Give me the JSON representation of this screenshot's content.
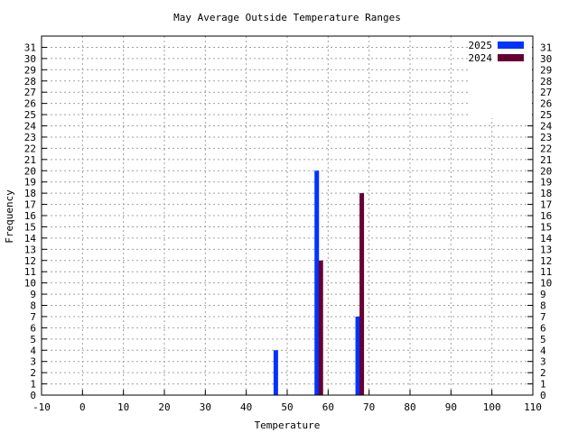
{
  "chart_data": {
    "type": "bar",
    "title": "May Average Outside Temperature Ranges",
    "xlabel": "Temperature",
    "ylabel": "Frequency",
    "xlim": [
      -10,
      110
    ],
    "ylim": [
      0,
      32
    ],
    "xticks": [
      -10,
      0,
      10,
      20,
      30,
      40,
      50,
      60,
      70,
      80,
      90,
      100,
      110
    ],
    "yticks": [
      0,
      1,
      2,
      3,
      4,
      5,
      6,
      7,
      8,
      9,
      10,
      11,
      12,
      13,
      14,
      15,
      16,
      17,
      18,
      19,
      20,
      21,
      22,
      23,
      24,
      25,
      26,
      27,
      28,
      29,
      30,
      31
    ],
    "grid": true,
    "legend_position": "top-right",
    "series": [
      {
        "name": "2025",
        "color": "#0033ff",
        "points": [
          {
            "x": 47,
            "y": 4
          },
          {
            "x": 57,
            "y": 20
          },
          {
            "x": 67,
            "y": 7
          }
        ]
      },
      {
        "name": "2024",
        "color": "#660033",
        "points": [
          {
            "x": 58,
            "y": 12
          },
          {
            "x": 68,
            "y": 18
          }
        ]
      }
    ]
  }
}
